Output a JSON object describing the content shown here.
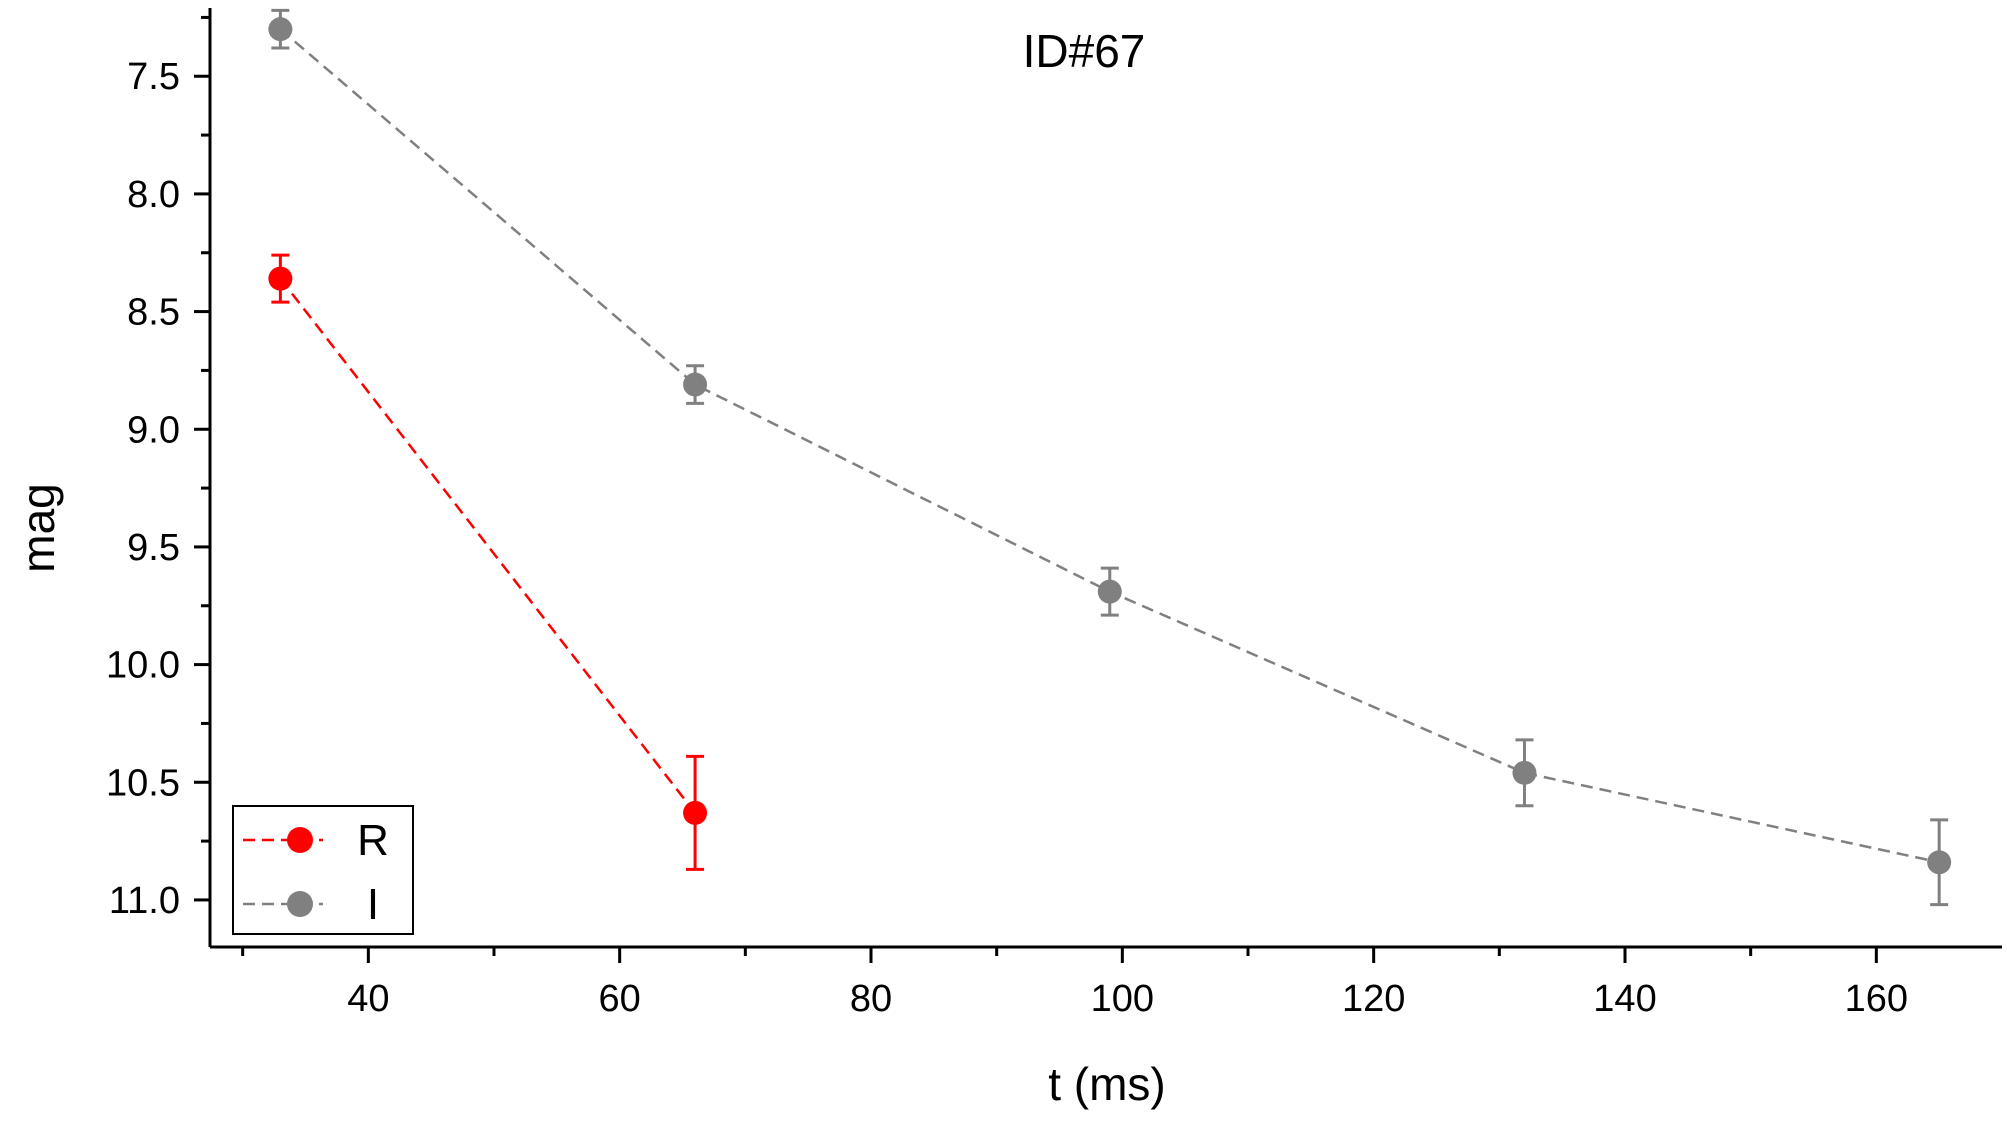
{
  "chart_data": {
    "type": "scatter",
    "title": "ID#67",
    "xlabel": "t (ms)",
    "ylabel": "mag",
    "xlim": [
      27.4,
      170
    ],
    "ylim": [
      7.21,
      11.2
    ],
    "y_inverted": true,
    "x_major_ticks": [
      40,
      60,
      80,
      100,
      120,
      140,
      160
    ],
    "x_minor_ticks": [
      30,
      50,
      70,
      90,
      110,
      130,
      150
    ],
    "y_major_ticks": [
      7.5,
      8.0,
      8.5,
      9.0,
      9.5,
      10.0,
      10.5,
      11.0
    ],
    "y_tick_labels": [
      "7.5",
      "8.0",
      "8.5",
      "9.0",
      "9.5",
      "10.0",
      "10.5",
      "11.0"
    ],
    "y_minor_ticks": [
      7.25,
      7.75,
      8.25,
      8.75,
      9.25,
      9.75,
      10.25,
      10.75
    ],
    "grid": false,
    "legend_position": "bottom-left",
    "series": [
      {
        "name": "R",
        "color": "#ff0000",
        "line_style": "dashed",
        "x": [
          33,
          66
        ],
        "y": [
          8.36,
          10.63
        ],
        "err_low": [
          0.1,
          0.24
        ],
        "err_high": [
          0.1,
          0.24
        ]
      },
      {
        "name": "I",
        "color": "#808080",
        "line_style": "dashed",
        "x": [
          33,
          66,
          99,
          132,
          165
        ],
        "y": [
          7.3,
          8.81,
          9.69,
          10.46,
          10.84
        ],
        "err_low": [
          0.08,
          0.08,
          0.1,
          0.14,
          0.18
        ],
        "err_high": [
          0.08,
          0.08,
          0.1,
          0.14,
          0.18
        ]
      }
    ]
  }
}
